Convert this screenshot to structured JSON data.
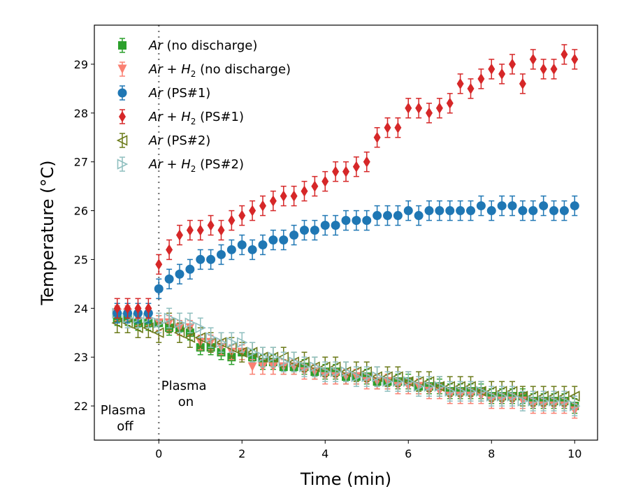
{
  "chart_data": {
    "type": "scatter",
    "title": "",
    "xlabel": "Time (min)",
    "ylabel": "Temperature (°C)",
    "xlim": [
      -1.55,
      10.55
    ],
    "ylim": [
      21.3,
      29.8
    ],
    "xticks": [
      0,
      2,
      4,
      6,
      8,
      10
    ],
    "yticks": [
      22,
      23,
      24,
      25,
      26,
      27,
      28,
      29
    ],
    "legend_position": "top-left",
    "annotations": [
      {
        "id": "plasma-off",
        "lines": [
          "Plasma",
          "off"
        ]
      },
      {
        "id": "plasma-on",
        "lines": [
          "Plasma",
          "on"
        ]
      }
    ],
    "vline": {
      "x": 0,
      "style": "dotted",
      "color": "#808080"
    },
    "series": [
      {
        "id": "ar-nodis",
        "label": {
          "species": "Ar",
          "h2": false,
          "suffix": "(no discharge)"
        },
        "color": "#2ca02c",
        "marker": "square",
        "filled": true,
        "yerr": 0.15,
        "x": [
          -1.0,
          -0.75,
          -0.5,
          -0.25,
          0.0,
          0.25,
          0.5,
          0.75,
          1.0,
          1.25,
          1.5,
          1.75,
          2.0,
          2.25,
          2.5,
          2.75,
          3.0,
          3.25,
          3.5,
          3.75,
          4.0,
          4.25,
          4.5,
          4.75,
          5.0,
          5.25,
          5.5,
          5.75,
          6.0,
          6.25,
          6.5,
          6.75,
          7.0,
          7.25,
          7.5,
          7.75,
          8.0,
          8.25,
          8.5,
          8.75,
          9.0,
          9.25,
          9.5,
          9.75,
          10.0
        ],
        "y": [
          23.8,
          23.8,
          23.7,
          23.7,
          23.7,
          23.6,
          23.6,
          23.5,
          23.2,
          23.2,
          23.1,
          23.0,
          23.1,
          23.0,
          22.9,
          22.9,
          22.8,
          22.8,
          22.8,
          22.7,
          22.7,
          22.7,
          22.6,
          22.6,
          22.6,
          22.5,
          22.5,
          22.5,
          22.5,
          22.4,
          22.4,
          22.4,
          22.3,
          22.3,
          22.3,
          22.3,
          22.2,
          22.2,
          22.2,
          22.2,
          22.1,
          22.1,
          22.1,
          22.1,
          22.0
        ]
      },
      {
        "id": "arh2-nodis",
        "label": {
          "species": "Ar",
          "h2": true,
          "suffix": "(no discharge)"
        },
        "color": "#fa8072",
        "marker": "triangle-down",
        "filled": true,
        "yerr": 0.15,
        "x": [
          -1.0,
          -0.75,
          -0.5,
          -0.25,
          0.0,
          0.25,
          0.5,
          0.75,
          1.0,
          1.25,
          1.5,
          1.75,
          2.0,
          2.25,
          2.5,
          2.75,
          3.0,
          3.25,
          3.5,
          3.75,
          4.0,
          4.25,
          4.5,
          4.75,
          5.0,
          5.25,
          5.5,
          5.75,
          6.0,
          6.25,
          6.5,
          6.75,
          7.0,
          7.25,
          7.5,
          7.75,
          8.0,
          8.25,
          8.5,
          8.75,
          9.0,
          9.25,
          9.5,
          9.75,
          10.0
        ],
        "y": [
          23.9,
          23.9,
          23.8,
          23.8,
          23.7,
          23.7,
          23.6,
          23.6,
          23.3,
          23.3,
          23.2,
          23.1,
          23.1,
          22.8,
          22.8,
          22.8,
          22.8,
          22.8,
          22.7,
          22.7,
          22.6,
          22.6,
          22.6,
          22.6,
          22.5,
          22.5,
          22.5,
          22.4,
          22.4,
          22.4,
          22.3,
          22.3,
          22.2,
          22.2,
          22.2,
          22.2,
          22.1,
          22.1,
          22.1,
          22.1,
          22.0,
          22.0,
          22.0,
          22.0,
          21.9
        ]
      },
      {
        "id": "ar-ps2",
        "label": {
          "species": "Ar",
          "h2": false,
          "suffix": "(PS#2)"
        },
        "color": "#6b7a19",
        "marker": "triangle-left",
        "filled": false,
        "yerr": 0.2,
        "x": [
          -1.0,
          -0.75,
          -0.5,
          -0.25,
          0.0,
          0.25,
          0.5,
          0.75,
          1.0,
          1.25,
          1.5,
          1.75,
          2.0,
          2.25,
          2.5,
          2.75,
          3.0,
          3.25,
          3.5,
          3.75,
          4.0,
          4.25,
          4.5,
          4.75,
          5.0,
          5.25,
          5.5,
          5.75,
          6.0,
          6.25,
          6.5,
          6.75,
          7.0,
          7.25,
          7.5,
          7.75,
          8.0,
          8.25,
          8.5,
          8.75,
          9.0,
          9.25,
          9.5,
          9.75,
          10.0
        ],
        "y": [
          23.7,
          23.7,
          23.6,
          23.6,
          23.5,
          23.7,
          23.5,
          23.4,
          23.4,
          23.3,
          23.3,
          23.2,
          23.1,
          23.1,
          23.0,
          23.0,
          23.0,
          22.9,
          22.9,
          22.8,
          22.8,
          22.8,
          22.7,
          22.7,
          22.7,
          22.6,
          22.6,
          22.6,
          22.5,
          22.5,
          22.5,
          22.4,
          22.4,
          22.4,
          22.4,
          22.3,
          22.3,
          22.3,
          22.3,
          22.2,
          22.2,
          22.2,
          22.2,
          22.2,
          22.2
        ]
      },
      {
        "id": "arh2-ps2",
        "label": {
          "species": "Ar",
          "h2": true,
          "suffix": "(PS#2)"
        },
        "color": "#8fbfbf",
        "marker": "triangle-right",
        "filled": false,
        "yerr": 0.2,
        "x": [
          -1.0,
          -0.75,
          -0.5,
          -0.25,
          0.0,
          0.25,
          0.5,
          0.75,
          1.0,
          1.25,
          1.5,
          1.75,
          2.0,
          2.25,
          2.5,
          2.75,
          3.0,
          3.25,
          3.5,
          3.75,
          4.0,
          4.25,
          4.5,
          4.75,
          5.0,
          5.25,
          5.5,
          5.75,
          6.0,
          6.25,
          6.5,
          6.75,
          7.0,
          7.25,
          7.5,
          7.75,
          8.0,
          8.25,
          8.5,
          8.75,
          9.0,
          9.25,
          9.5,
          9.75,
          10.0
        ],
        "y": [
          23.9,
          23.8,
          23.8,
          23.8,
          23.7,
          23.8,
          23.7,
          23.7,
          23.6,
          23.4,
          23.3,
          23.3,
          23.3,
          23.1,
          23.0,
          23.0,
          22.9,
          22.9,
          22.8,
          22.8,
          22.7,
          22.7,
          22.7,
          22.6,
          22.6,
          22.6,
          22.5,
          22.5,
          22.5,
          22.4,
          22.4,
          22.4,
          22.3,
          22.3,
          22.3,
          22.3,
          22.2,
          22.2,
          22.2,
          22.1,
          22.1,
          22.1,
          22.1,
          22.1,
          22.0
        ]
      },
      {
        "id": "ar-ps1",
        "label": {
          "species": "Ar",
          "h2": false,
          "suffix": "(PS#1)"
        },
        "color": "#1f77b4",
        "marker": "circle",
        "filled": true,
        "yerr": 0.2,
        "x": [
          -1.0,
          -0.75,
          -0.5,
          -0.25,
          0.0,
          0.25,
          0.5,
          0.75,
          1.0,
          1.25,
          1.5,
          1.75,
          2.0,
          2.25,
          2.5,
          2.75,
          3.0,
          3.25,
          3.5,
          3.75,
          4.0,
          4.25,
          4.5,
          4.75,
          5.0,
          5.25,
          5.5,
          5.75,
          6.0,
          6.25,
          6.5,
          6.75,
          7.0,
          7.25,
          7.5,
          7.75,
          8.0,
          8.25,
          8.5,
          8.75,
          9.0,
          9.25,
          9.5,
          9.75,
          10.0
        ],
        "y": [
          23.9,
          23.9,
          23.9,
          23.9,
          24.4,
          24.6,
          24.7,
          24.8,
          25.0,
          25.0,
          25.1,
          25.2,
          25.3,
          25.2,
          25.3,
          25.4,
          25.4,
          25.5,
          25.6,
          25.6,
          25.7,
          25.7,
          25.8,
          25.8,
          25.8,
          25.9,
          25.9,
          25.9,
          26.0,
          25.9,
          26.0,
          26.0,
          26.0,
          26.0,
          26.0,
          26.1,
          26.0,
          26.1,
          26.1,
          26.0,
          26.0,
          26.1,
          26.0,
          26.0,
          26.1
        ]
      },
      {
        "id": "arh2-ps1",
        "label": {
          "species": "Ar",
          "h2": true,
          "suffix": "(PS#1)"
        },
        "color": "#d62728",
        "marker": "diamond",
        "filled": true,
        "yerr": 0.2,
        "x": [
          -1.0,
          -0.75,
          -0.5,
          -0.25,
          0.0,
          0.25,
          0.5,
          0.75,
          1.0,
          1.25,
          1.5,
          1.75,
          2.0,
          2.25,
          2.5,
          2.75,
          3.0,
          3.25,
          3.5,
          3.75,
          4.0,
          4.25,
          4.5,
          4.75,
          5.0,
          5.25,
          5.5,
          5.75,
          6.0,
          6.25,
          6.5,
          6.75,
          7.0,
          7.25,
          7.5,
          7.75,
          8.0,
          8.25,
          8.5,
          8.75,
          9.0,
          9.25,
          9.5,
          9.75,
          10.0
        ],
        "y": [
          24.0,
          24.0,
          24.0,
          24.0,
          24.9,
          25.2,
          25.5,
          25.6,
          25.6,
          25.7,
          25.6,
          25.8,
          25.9,
          26.0,
          26.1,
          26.2,
          26.3,
          26.3,
          26.4,
          26.5,
          26.6,
          26.8,
          26.8,
          26.9,
          27.0,
          27.5,
          27.7,
          27.7,
          28.1,
          28.1,
          28.0,
          28.1,
          28.2,
          28.6,
          28.5,
          28.7,
          28.9,
          28.8,
          29.0,
          28.6,
          29.1,
          28.9,
          28.9,
          29.2,
          29.1
        ]
      }
    ],
    "legend_order": [
      "ar-nodis",
      "arh2-nodis",
      "ar-ps1",
      "arh2-ps1",
      "ar-ps2",
      "arh2-ps2"
    ]
  }
}
